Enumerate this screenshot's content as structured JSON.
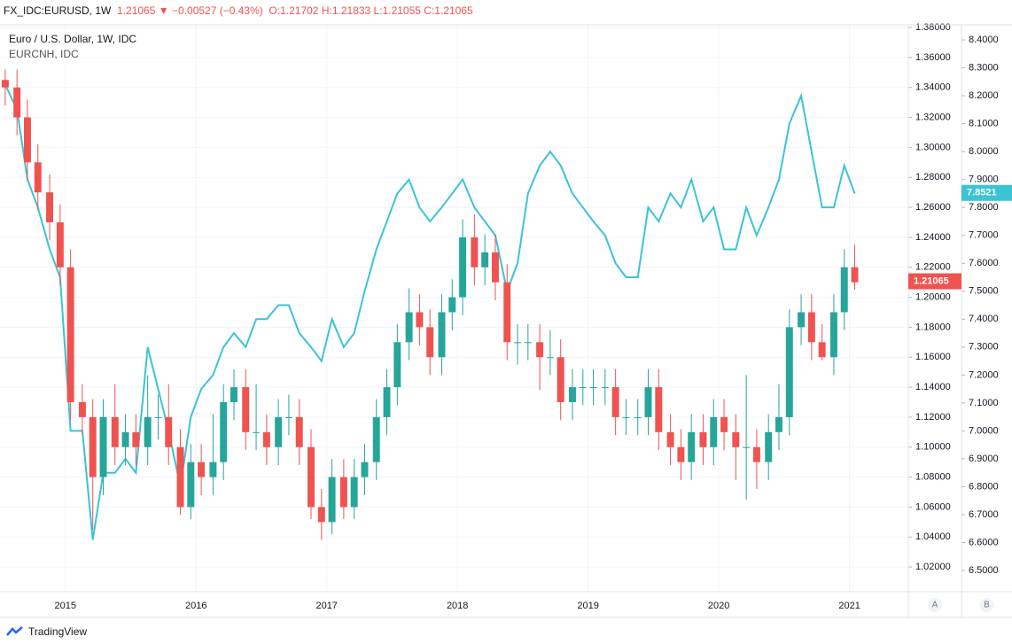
{
  "chart_data": {
    "type": "candlestick",
    "header": {
      "symbol": "FX_IDC:EURUSD, 1W",
      "last": "1.21065",
      "change": "−0.00527 (−0.43%)",
      "open": "O:1.21702",
      "high": "H:1.21833",
      "low": "L:1.21055",
      "close": "C:1.21065"
    },
    "title": "Euro / U.S. Dollar, 1W, IDC",
    "up_color": "#26a69a",
    "down_color": "#ef5350",
    "x": [
      2014.54,
      2014.63,
      2014.71,
      2014.79,
      2014.88,
      2014.96,
      2015.04,
      2015.13,
      2015.21,
      2015.29,
      2015.38,
      2015.46,
      2015.54,
      2015.63,
      2015.71,
      2015.79,
      2015.88,
      2015.96,
      2016.04,
      2016.13,
      2016.21,
      2016.29,
      2016.38,
      2016.46,
      2016.54,
      2016.63,
      2016.71,
      2016.79,
      2016.88,
      2016.96,
      2017.04,
      2017.13,
      2017.21,
      2017.29,
      2017.38,
      2017.46,
      2017.54,
      2017.63,
      2017.71,
      2017.79,
      2017.88,
      2017.96,
      2018.04,
      2018.13,
      2018.21,
      2018.29,
      2018.38,
      2018.46,
      2018.54,
      2018.63,
      2018.71,
      2018.79,
      2018.88,
      2018.96,
      2019.04,
      2019.13,
      2019.21,
      2019.29,
      2019.38,
      2019.46,
      2019.54,
      2019.63,
      2019.71,
      2019.79,
      2019.88,
      2019.96,
      2020.04,
      2020.13,
      2020.21,
      2020.29,
      2020.38,
      2020.46,
      2020.54,
      2020.63,
      2020.71,
      2020.79,
      2020.88,
      2020.96,
      2021.04
    ],
    "open": [
      1.345,
      1.34,
      1.32,
      1.29,
      1.27,
      1.25,
      1.22,
      1.13,
      1.12,
      1.08,
      1.12,
      1.1,
      1.11,
      1.1,
      1.12,
      1.12,
      1.1,
      1.06,
      1.09,
      1.08,
      1.09,
      1.13,
      1.14,
      1.11,
      1.11,
      1.1,
      1.12,
      1.12,
      1.1,
      1.06,
      1.05,
      1.08,
      1.06,
      1.08,
      1.09,
      1.12,
      1.14,
      1.17,
      1.19,
      1.18,
      1.16,
      1.19,
      1.2,
      1.24,
      1.22,
      1.23,
      1.21,
      1.17,
      1.17,
      1.17,
      1.16,
      1.16,
      1.13,
      1.14,
      1.14,
      1.14,
      1.14,
      1.12,
      1.12,
      1.12,
      1.14,
      1.11,
      1.1,
      1.09,
      1.11,
      1.1,
      1.12,
      1.11,
      1.1,
      1.1,
      1.09,
      1.11,
      1.12,
      1.18,
      1.19,
      1.17,
      1.16,
      1.19,
      1.22
    ],
    "high": [
      1.352,
      1.352,
      1.332,
      1.302,
      1.282,
      1.262,
      1.232,
      1.142,
      1.132,
      1.132,
      1.142,
      1.122,
      1.122,
      1.148,
      1.135,
      1.142,
      1.112,
      1.102,
      1.102,
      1.122,
      1.142,
      1.152,
      1.152,
      1.142,
      1.122,
      1.132,
      1.135,
      1.132,
      1.112,
      1.072,
      1.092,
      1.092,
      1.092,
      1.102,
      1.132,
      1.152,
      1.182,
      1.206,
      1.202,
      1.192,
      1.202,
      1.212,
      1.252,
      1.255,
      1.242,
      1.242,
      1.222,
      1.182,
      1.182,
      1.182,
      1.178,
      1.172,
      1.152,
      1.152,
      1.152,
      1.152,
      1.152,
      1.132,
      1.132,
      1.152,
      1.152,
      1.122,
      1.112,
      1.122,
      1.122,
      1.132,
      1.132,
      1.122,
      1.148,
      1.112,
      1.122,
      1.142,
      1.192,
      1.202,
      1.202,
      1.182,
      1.202,
      1.232,
      1.235
    ],
    "low": [
      1.328,
      1.308,
      1.278,
      1.258,
      1.238,
      1.208,
      1.118,
      1.108,
      1.045,
      1.068,
      1.088,
      1.088,
      1.088,
      1.088,
      1.105,
      1.088,
      1.055,
      1.052,
      1.068,
      1.068,
      1.078,
      1.118,
      1.098,
      1.098,
      1.088,
      1.088,
      1.108,
      1.088,
      1.052,
      1.038,
      1.042,
      1.052,
      1.052,
      1.068,
      1.078,
      1.108,
      1.128,
      1.158,
      1.168,
      1.148,
      1.148,
      1.178,
      1.188,
      1.208,
      1.208,
      1.198,
      1.158,
      1.155,
      1.158,
      1.138,
      1.148,
      1.118,
      1.118,
      1.128,
      1.128,
      1.128,
      1.108,
      1.108,
      1.108,
      1.108,
      1.098,
      1.088,
      1.078,
      1.078,
      1.088,
      1.088,
      1.098,
      1.078,
      1.065,
      1.072,
      1.078,
      1.098,
      1.108,
      1.168,
      1.158,
      1.158,
      1.148,
      1.178,
      1.205
    ],
    "close": [
      1.34,
      1.32,
      1.29,
      1.27,
      1.25,
      1.22,
      1.13,
      1.12,
      1.08,
      1.12,
      1.1,
      1.11,
      1.1,
      1.12,
      1.12,
      1.1,
      1.06,
      1.09,
      1.08,
      1.09,
      1.13,
      1.14,
      1.11,
      1.11,
      1.1,
      1.12,
      1.12,
      1.1,
      1.06,
      1.05,
      1.08,
      1.06,
      1.08,
      1.09,
      1.12,
      1.14,
      1.17,
      1.19,
      1.18,
      1.16,
      1.19,
      1.2,
      1.24,
      1.22,
      1.23,
      1.21,
      1.17,
      1.17,
      1.17,
      1.16,
      1.16,
      1.13,
      1.14,
      1.14,
      1.14,
      1.14,
      1.12,
      1.12,
      1.12,
      1.14,
      1.11,
      1.1,
      1.09,
      1.11,
      1.1,
      1.12,
      1.11,
      1.1,
      1.1,
      1.09,
      1.11,
      1.12,
      1.18,
      1.19,
      1.17,
      1.16,
      1.19,
      1.22,
      1.21
    ],
    "overlay": {
      "name": "EURCNH, IDC",
      "type": "line",
      "axis": "y2",
      "color": "#3bc3d6",
      "values": [
        8.24,
        8.15,
        7.9,
        7.8,
        7.65,
        7.55,
        7.0,
        7.0,
        6.61,
        6.85,
        6.85,
        6.9,
        6.85,
        7.3,
        7.15,
        7.0,
        6.8,
        7.05,
        7.15,
        7.2,
        7.3,
        7.35,
        7.3,
        7.4,
        7.4,
        7.45,
        7.45,
        7.35,
        7.3,
        7.25,
        7.4,
        7.3,
        7.35,
        7.5,
        7.65,
        7.75,
        7.85,
        7.9,
        7.8,
        7.75,
        7.8,
        7.85,
        7.9,
        7.8,
        7.75,
        7.7,
        7.5,
        7.6,
        7.85,
        7.95,
        8.0,
        7.95,
        7.85,
        7.8,
        7.75,
        7.7,
        7.6,
        7.55,
        7.55,
        7.8,
        7.75,
        7.85,
        7.8,
        7.9,
        7.75,
        7.8,
        7.65,
        7.65,
        7.8,
        7.7,
        7.8,
        7.9,
        8.1,
        8.2,
        8.0,
        7.8,
        7.8,
        7.95,
        7.85
      ]
    },
    "last_price": {
      "value": 1.21065,
      "label": "1.21065"
    },
    "overlay_last": {
      "value": 7.8521,
      "label": "7.8521"
    },
    "xlim": [
      2014.5,
      2021.45
    ],
    "xticks": [
      2015,
      2016,
      2017,
      2018,
      2019,
      2020,
      2021
    ],
    "ylim": [
      1.0035,
      1.3818
    ],
    "yticks": [
      {
        "value": 1.02,
        "label": "1.02000"
      },
      {
        "value": 1.04,
        "label": "1.04000"
      },
      {
        "value": 1.06,
        "label": "1.06000"
      },
      {
        "value": 1.08,
        "label": "1.08000"
      },
      {
        "value": 1.1,
        "label": "1.10000"
      },
      {
        "value": 1.12,
        "label": "1.12000"
      },
      {
        "value": 1.14,
        "label": "1.14000"
      },
      {
        "value": 1.16,
        "label": "1.16000"
      },
      {
        "value": 1.18,
        "label": "1.18000"
      },
      {
        "value": 1.2,
        "label": "1.20000"
      },
      {
        "value": 1.22,
        "label": "1.22000"
      },
      {
        "value": 1.24,
        "label": "1.24000"
      },
      {
        "value": 1.26,
        "label": "1.26000"
      },
      {
        "value": 1.28,
        "label": "1.28000"
      },
      {
        "value": 1.3,
        "label": "1.30000"
      },
      {
        "value": 1.32,
        "label": "1.32000"
      },
      {
        "value": 1.34,
        "label": "1.34000"
      },
      {
        "value": 1.36,
        "label": "1.36000"
      },
      {
        "value": 1.38,
        "label": "1.38000"
      }
    ],
    "y2lim": [
      6.424,
      8.454
    ],
    "y2ticks": [
      {
        "value": 6.5,
        "label": "6.5000"
      },
      {
        "value": 6.6,
        "label": "6.6000"
      },
      {
        "value": 6.7,
        "label": "6.7000"
      },
      {
        "value": 6.8,
        "label": "6.8000"
      },
      {
        "value": 6.9,
        "label": "6.9000"
      },
      {
        "value": 7.0,
        "label": "7.0000"
      },
      {
        "value": 7.1,
        "label": "7.1000"
      },
      {
        "value": 7.2,
        "label": "7.2000"
      },
      {
        "value": 7.3,
        "label": "7.3000"
      },
      {
        "value": 7.4,
        "label": "7.4000"
      },
      {
        "value": 7.5,
        "label": "7.5000"
      },
      {
        "value": 7.6,
        "label": "7.6000"
      },
      {
        "value": 7.7,
        "label": "7.7000"
      },
      {
        "value": 7.8,
        "label": "7.8000"
      },
      {
        "value": 7.9,
        "label": "7.9000"
      },
      {
        "value": 8.0,
        "label": "8.0000"
      },
      {
        "value": 8.1,
        "label": "8.1000"
      },
      {
        "value": 8.2,
        "label": "8.2000"
      },
      {
        "value": 8.3,
        "label": "8.3000"
      },
      {
        "value": 8.4,
        "label": "8.4000"
      }
    ],
    "grid": true,
    "scale_buttons": [
      "A",
      "B"
    ],
    "brand": "TradingView"
  }
}
